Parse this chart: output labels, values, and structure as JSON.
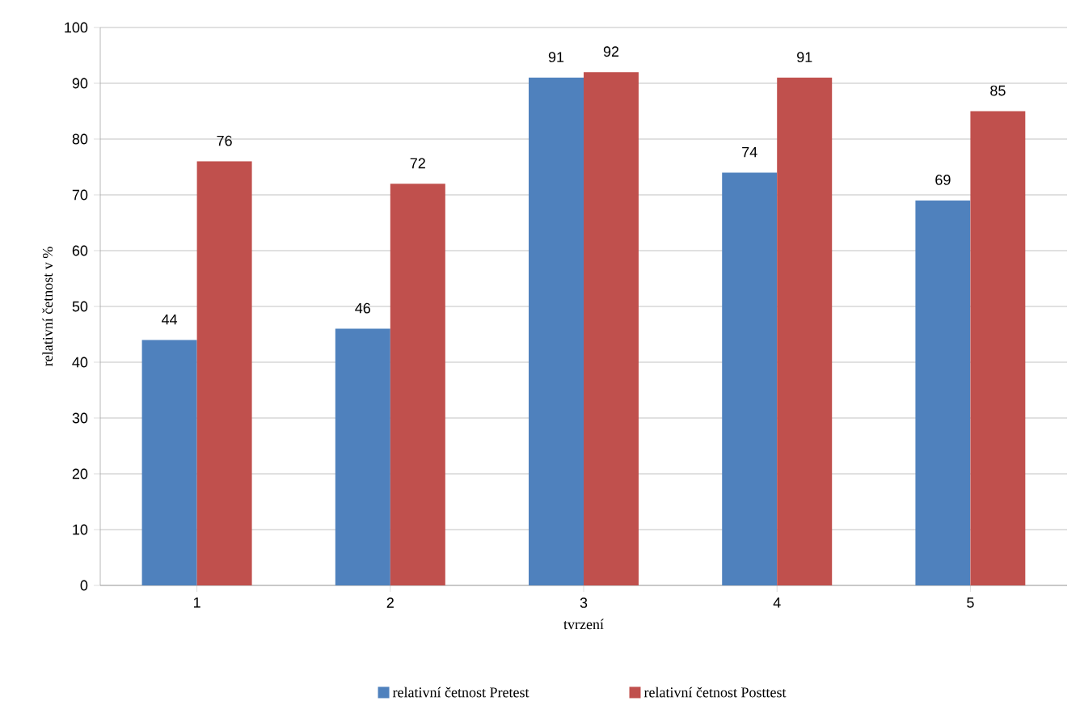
{
  "chart_data": {
    "type": "bar",
    "xlabel": "tvrzení",
    "ylabel": "relativní četnost v %",
    "categories": [
      "1",
      "2",
      "3",
      "4",
      "5"
    ],
    "series": [
      {
        "name": "relativní četnost Pretest",
        "color": "#4f81bd",
        "values": [
          44,
          46,
          91,
          74,
          69
        ]
      },
      {
        "name": "relativní četnost Posttest",
        "color": "#c0504d",
        "values": [
          76,
          72,
          92,
          91,
          85
        ]
      }
    ],
    "ylim": [
      0,
      100
    ],
    "yticks": [
      0,
      10,
      20,
      30,
      40,
      50,
      60,
      70,
      80,
      90,
      100
    ],
    "grid": "y",
    "legend": "bottom",
    "data_labels": true
  }
}
